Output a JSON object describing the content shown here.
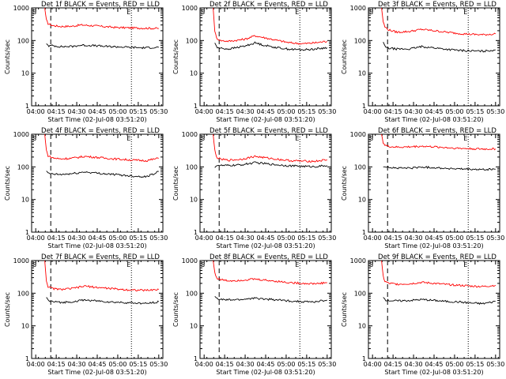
{
  "chart_data": [
    {
      "type": "line",
      "title": "Det 1f BLACK = Events, RED = LLD",
      "xlabel": "Start Time (02-Jul-08 03:51:20)",
      "ylabel": "Counts/sec",
      "marker_s": "S",
      "marker_e": "E",
      "yscale": "log",
      "ylim": [
        1,
        1000
      ],
      "yticks": [
        "1",
        "10",
        "100",
        "1000"
      ],
      "xticks": [
        "04:00",
        "04:15",
        "04:30",
        "04:45",
        "05:00",
        "05:15",
        "05:30"
      ],
      "series": [
        {
          "color": "#ff0000",
          "x": [
            4.11,
            4.13,
            4.15,
            4.2,
            4.3,
            4.45,
            4.55,
            4.7,
            4.85,
            5.0,
            5.15,
            5.3,
            5.5
          ],
          "y": [
            1000,
            420,
            330,
            290,
            270,
            275,
            300,
            285,
            265,
            250,
            245,
            240,
            235
          ]
        },
        {
          "color": "#000000",
          "x": [
            4.13,
            4.16,
            4.2,
            4.3,
            4.45,
            4.55,
            4.7,
            4.85,
            5.0,
            5.15,
            5.3,
            5.5
          ],
          "y": [
            80,
            68,
            70,
            65,
            66,
            72,
            70,
            66,
            64,
            62,
            60,
            62
          ]
        }
      ]
    },
    {
      "type": "line",
      "title": "Det 2f BLACK = Events, RED = LLD",
      "xlabel": "Start Time (02-Jul-08 03:51:20)",
      "ylabel": "Counts/sec",
      "marker_s": "S",
      "marker_e": "E",
      "yscale": "log",
      "ylim": [
        1,
        1000
      ],
      "yticks": [
        "1",
        "10",
        "100",
        "1000"
      ],
      "xticks": [
        "04:00",
        "04:15",
        "04:30",
        "04:45",
        "05:00",
        "05:15",
        "05:30"
      ],
      "series": [
        {
          "color": "#ff0000",
          "x": [
            4.11,
            4.13,
            4.15,
            4.2,
            4.3,
            4.5,
            4.62,
            4.75,
            4.9,
            5.05,
            5.2,
            5.35,
            5.5
          ],
          "y": [
            1000,
            200,
            120,
            100,
            95,
            110,
            140,
            120,
            100,
            85,
            80,
            85,
            95
          ]
        },
        {
          "color": "#000000",
          "x": [
            4.13,
            4.16,
            4.2,
            4.3,
            4.5,
            4.62,
            4.75,
            4.9,
            5.05,
            5.2,
            5.35,
            5.5
          ],
          "y": [
            85,
            60,
            58,
            55,
            68,
            85,
            70,
            60,
            54,
            52,
            55,
            60
          ]
        }
      ]
    },
    {
      "type": "line",
      "title": "Det 3f BLACK = Events, RED = LLD",
      "xlabel": "Start Time (02-Jul-08 03:51:20)",
      "ylabel": "Counts/sec",
      "marker_s": "S",
      "marker_e": "E",
      "yscale": "log",
      "ylim": [
        1,
        1000
      ],
      "yticks": [
        "1",
        "10",
        "100",
        "1000"
      ],
      "xticks": [
        "04:00",
        "04:15",
        "04:30",
        "04:45",
        "05:00",
        "05:15",
        "05:30"
      ],
      "series": [
        {
          "color": "#ff0000",
          "x": [
            4.11,
            4.13,
            4.15,
            4.2,
            4.3,
            4.45,
            4.6,
            4.75,
            4.9,
            5.05,
            5.2,
            5.35,
            5.5
          ],
          "y": [
            1000,
            380,
            260,
            210,
            180,
            190,
            220,
            200,
            180,
            165,
            155,
            150,
            160
          ]
        },
        {
          "color": "#000000",
          "x": [
            4.13,
            4.16,
            4.2,
            4.3,
            4.45,
            4.6,
            4.75,
            4.9,
            5.05,
            5.2,
            5.35,
            5.5
          ],
          "y": [
            90,
            62,
            58,
            55,
            55,
            65,
            60,
            54,
            50,
            48,
            47,
            52
          ]
        }
      ]
    },
    {
      "type": "line",
      "title": "Det 4f BLACK = Events, RED = LLD",
      "xlabel": "Start Time (02-Jul-08 03:51:20)",
      "ylabel": "Counts/sec",
      "marker_s": "S",
      "marker_e": "E",
      "yscale": "log",
      "ylim": [
        1,
        1000
      ],
      "yticks": [
        "1",
        "10",
        "100",
        "1000"
      ],
      "xticks": [
        "04:00",
        "04:15",
        "04:30",
        "04:45",
        "05:00",
        "05:15",
        "05:30"
      ],
      "series": [
        {
          "color": "#ff0000",
          "x": [
            4.11,
            4.13,
            4.15,
            4.2,
            4.3,
            4.45,
            4.6,
            4.75,
            4.9,
            5.05,
            5.2,
            5.35,
            5.5
          ],
          "y": [
            1000,
            320,
            220,
            190,
            175,
            185,
            210,
            195,
            180,
            170,
            160,
            155,
            185
          ]
        },
        {
          "color": "#000000",
          "x": [
            4.13,
            4.16,
            4.2,
            4.3,
            4.45,
            4.6,
            4.75,
            4.9,
            5.05,
            5.2,
            5.35,
            5.5
          ],
          "y": [
            75,
            62,
            60,
            58,
            62,
            70,
            64,
            60,
            56,
            52,
            50,
            72
          ]
        }
      ]
    },
    {
      "type": "line",
      "title": "Det 5f BLACK = Events, RED = LLD",
      "xlabel": "Start Time (02-Jul-08 03:51:20)",
      "ylabel": "Counts/sec",
      "marker_s": "S",
      "marker_e": "E",
      "yscale": "log",
      "ylim": [
        1,
        1000
      ],
      "yticks": [
        "1",
        "10",
        "100",
        "1000"
      ],
      "xticks": [
        "04:00",
        "04:15",
        "04:30",
        "04:45",
        "05:00",
        "05:15",
        "05:30"
      ],
      "series": [
        {
          "color": "#ff0000",
          "x": [
            4.11,
            4.13,
            4.15,
            4.2,
            4.3,
            4.45,
            4.62,
            4.75,
            4.9,
            5.05,
            5.2,
            5.35,
            5.5
          ],
          "y": [
            1000,
            320,
            200,
            170,
            160,
            170,
            210,
            190,
            170,
            155,
            150,
            148,
            165
          ]
        },
        {
          "color": "#000000",
          "x": [
            4.13,
            4.16,
            4.2,
            4.3,
            4.45,
            4.62,
            4.75,
            4.9,
            5.05,
            5.2,
            5.35,
            5.5
          ],
          "y": [
            95,
            115,
            110,
            110,
            115,
            135,
            125,
            115,
            108,
            104,
            102,
            110
          ]
        }
      ]
    },
    {
      "type": "line",
      "title": "Det 6f BLACK = Events, RED = LLD",
      "xlabel": "Start Time (02-Jul-08 03:51:20)",
      "ylabel": "Counts/sec",
      "marker_s": "S",
      "marker_e": "E",
      "yscale": "log",
      "ylim": [
        1,
        1000
      ],
      "yticks": [
        "1",
        "10",
        "100",
        "1000"
      ],
      "xticks": [
        "04:00",
        "04:15",
        "04:30",
        "04:45",
        "05:00",
        "05:15",
        "05:30"
      ],
      "series": [
        {
          "color": "#ff0000",
          "x": [
            4.11,
            4.13,
            4.15,
            4.2,
            4.3,
            4.45,
            4.6,
            4.75,
            4.9,
            5.05,
            5.2,
            5.35,
            5.5
          ],
          "y": [
            1000,
            560,
            460,
            420,
            400,
            410,
            430,
            410,
            390,
            370,
            360,
            350,
            355
          ]
        },
        {
          "color": "#000000",
          "x": [
            4.13,
            4.16,
            4.2,
            4.3,
            4.45,
            4.6,
            4.75,
            4.9,
            5.05,
            5.2,
            5.35,
            5.5
          ],
          "y": [
            100,
            100,
            98,
            92,
            92,
            98,
            95,
            90,
            86,
            84,
            82,
            85
          ]
        }
      ]
    },
    {
      "type": "line",
      "title": "Det 7f BLACK = Events, RED = LLD",
      "xlabel": "Start Time (02-Jul-08 03:51:20)",
      "ylabel": "Counts/sec",
      "marker_s": "S",
      "marker_e": "E",
      "yscale": "log",
      "ylim": [
        1,
        1000
      ],
      "yticks": [
        "1",
        "10",
        "100",
        "1000"
      ],
      "xticks": [
        "04:00",
        "04:15",
        "04:30",
        "04:45",
        "05:00",
        "05:15",
        "05:30"
      ],
      "series": [
        {
          "color": "#ff0000",
          "x": [
            4.11,
            4.13,
            4.15,
            4.2,
            4.3,
            4.45,
            4.6,
            4.75,
            4.9,
            5.05,
            5.2,
            5.35,
            5.5
          ],
          "y": [
            1000,
            240,
            160,
            140,
            130,
            140,
            165,
            150,
            140,
            130,
            125,
            122,
            130
          ]
        },
        {
          "color": "#000000",
          "x": [
            4.13,
            4.16,
            4.2,
            4.3,
            4.45,
            4.6,
            4.75,
            4.9,
            5.05,
            5.2,
            5.35,
            5.5
          ],
          "y": [
            75,
            58,
            55,
            52,
            55,
            62,
            58,
            54,
            52,
            50,
            48,
            55
          ]
        }
      ]
    },
    {
      "type": "line",
      "title": "Det 8f BLACK = Events, RED = LLD",
      "xlabel": "Start Time (02-Jul-08 03:51:20)",
      "ylabel": "Counts/sec",
      "marker_s": "S",
      "marker_e": "E",
      "yscale": "log",
      "ylim": [
        1,
        1000
      ],
      "yticks": [
        "1",
        "10",
        "100",
        "1000"
      ],
      "xticks": [
        "04:00",
        "04:15",
        "04:30",
        "04:45",
        "05:00",
        "05:15",
        "05:30"
      ],
      "series": [
        {
          "color": "#ff0000",
          "x": [
            4.11,
            4.13,
            4.15,
            4.2,
            4.3,
            4.45,
            4.6,
            4.75,
            4.9,
            5.05,
            5.2,
            5.35,
            5.5
          ],
          "y": [
            1000,
            430,
            300,
            260,
            240,
            250,
            270,
            250,
            230,
            210,
            200,
            195,
            210
          ]
        },
        {
          "color": "#000000",
          "x": [
            4.13,
            4.16,
            4.2,
            4.3,
            4.45,
            4.6,
            4.75,
            4.9,
            5.05,
            5.2,
            5.35,
            5.5
          ],
          "y": [
            80,
            68,
            64,
            62,
            64,
            70,
            66,
            62,
            58,
            55,
            54,
            62
          ]
        }
      ]
    },
    {
      "type": "line",
      "title": "Det 9f BLACK = Events, RED = LLD",
      "xlabel": "Start Time (02-Jul-08 03:51:20)",
      "ylabel": "Counts/sec",
      "marker_s": "S",
      "marker_e": "E",
      "yscale": "log",
      "ylim": [
        1,
        1000
      ],
      "yticks": [
        "1",
        "10",
        "100",
        "1000"
      ],
      "xticks": [
        "04:00",
        "04:15",
        "04:30",
        "04:45",
        "05:00",
        "05:15",
        "05:30"
      ],
      "series": [
        {
          "color": "#ff0000",
          "x": [
            4.11,
            4.13,
            4.15,
            4.2,
            4.3,
            4.45,
            4.6,
            4.75,
            4.9,
            5.05,
            5.2,
            5.35,
            5.5
          ],
          "y": [
            1000,
            330,
            230,
            200,
            190,
            195,
            215,
            200,
            185,
            175,
            165,
            160,
            175
          ]
        },
        {
          "color": "#000000",
          "x": [
            4.13,
            4.16,
            4.2,
            4.3,
            4.45,
            4.6,
            4.75,
            4.9,
            5.05,
            5.2,
            5.35,
            5.5
          ],
          "y": [
            75,
            62,
            60,
            58,
            60,
            64,
            60,
            56,
            54,
            50,
            48,
            56
          ]
        }
      ]
    }
  ]
}
